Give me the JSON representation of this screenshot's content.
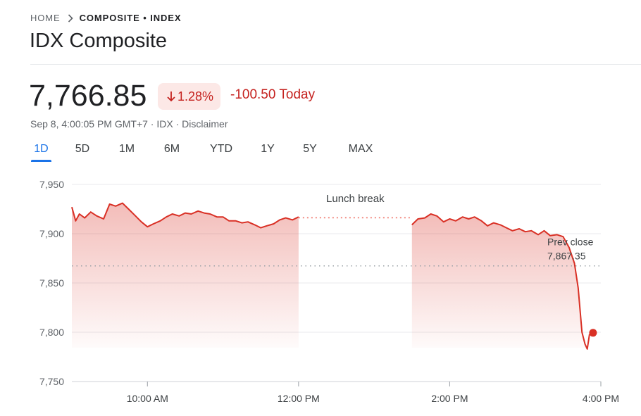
{
  "breadcrumb": {
    "home": "HOME",
    "current": "COMPOSITE • INDEX"
  },
  "title": "IDX Composite",
  "quote": {
    "price": "7,766.85",
    "change_percent": "1.28%",
    "change_today": "-100.50 Today",
    "direction": "down"
  },
  "meta": {
    "timestamp": "Sep 8, 4:00:05 PM GMT+7",
    "exchange": "IDX",
    "separator": " · ",
    "disclaimer": "Disclaimer"
  },
  "tabs": [
    {
      "label": "1D",
      "active": true
    },
    {
      "label": "5D",
      "active": false
    },
    {
      "label": "1M",
      "active": false
    },
    {
      "label": "6M",
      "active": false
    },
    {
      "label": "YTD",
      "active": false
    },
    {
      "label": "1Y",
      "active": false
    },
    {
      "label": "5Y",
      "active": false
    },
    {
      "label": "MAX",
      "active": false
    }
  ],
  "colors": {
    "down": "#d93025",
    "accent": "#1a73e8"
  },
  "chart_data": {
    "type": "line",
    "x_unit": "time of day (hours)",
    "ylim": [
      7750,
      7950
    ],
    "yticks": [
      7950,
      7900,
      7850,
      7800,
      7750
    ],
    "ytick_labels": [
      "7,950",
      "7,900",
      "7,850",
      "7,800",
      "7,750"
    ],
    "xlim": [
      9.0,
      16.0
    ],
    "xticks": [
      10,
      12,
      14,
      16
    ],
    "xtick_labels": [
      "10:00 AM",
      "12:00 PM",
      "2:00 PM",
      "4:00 PM"
    ],
    "grid": true,
    "previous_close": {
      "label": "Prev close",
      "value": 7867.35,
      "value_label": "7,867.35"
    },
    "annotation": {
      "text": "Lunch break",
      "start": 12.0,
      "end": 13.5
    },
    "series": [
      {
        "session": "morning",
        "points": [
          [
            9.0,
            7927
          ],
          [
            9.05,
            7913
          ],
          [
            9.1,
            7920
          ],
          [
            9.17,
            7916
          ],
          [
            9.25,
            7922
          ],
          [
            9.33,
            7918
          ],
          [
            9.42,
            7915
          ],
          [
            9.5,
            7930
          ],
          [
            9.58,
            7928
          ],
          [
            9.67,
            7931
          ],
          [
            9.75,
            7925
          ],
          [
            9.83,
            7919
          ],
          [
            9.92,
            7912
          ],
          [
            10.0,
            7907
          ],
          [
            10.08,
            7910
          ],
          [
            10.17,
            7913
          ],
          [
            10.25,
            7917
          ],
          [
            10.33,
            7920
          ],
          [
            10.42,
            7918
          ],
          [
            10.5,
            7921
          ],
          [
            10.58,
            7920
          ],
          [
            10.67,
            7923
          ],
          [
            10.75,
            7921
          ],
          [
            10.83,
            7920
          ],
          [
            10.92,
            7917
          ],
          [
            11.0,
            7917
          ],
          [
            11.08,
            7913
          ],
          [
            11.17,
            7913
          ],
          [
            11.25,
            7911
          ],
          [
            11.33,
            7912
          ],
          [
            11.42,
            7909
          ],
          [
            11.5,
            7906
          ],
          [
            11.58,
            7908
          ],
          [
            11.67,
            7910
          ],
          [
            11.75,
            7914
          ],
          [
            11.83,
            7916
          ],
          [
            11.92,
            7914
          ],
          [
            12.0,
            7917
          ]
        ]
      },
      {
        "session": "afternoon",
        "points": [
          [
            13.5,
            7909
          ],
          [
            13.58,
            7915
          ],
          [
            13.67,
            7916
          ],
          [
            13.75,
            7920
          ],
          [
            13.83,
            7918
          ],
          [
            13.92,
            7912
          ],
          [
            14.0,
            7915
          ],
          [
            14.08,
            7913
          ],
          [
            14.17,
            7917
          ],
          [
            14.25,
            7915
          ],
          [
            14.33,
            7917
          ],
          [
            14.42,
            7913
          ],
          [
            14.5,
            7908
          ],
          [
            14.58,
            7911
          ],
          [
            14.67,
            7909
          ],
          [
            14.75,
            7906
          ],
          [
            14.83,
            7903
          ],
          [
            14.92,
            7905
          ],
          [
            15.0,
            7902
          ],
          [
            15.08,
            7903
          ],
          [
            15.17,
            7899
          ],
          [
            15.25,
            7903
          ],
          [
            15.33,
            7898
          ],
          [
            15.42,
            7899
          ],
          [
            15.5,
            7897
          ],
          [
            15.58,
            7886
          ],
          [
            15.65,
            7870
          ],
          [
            15.7,
            7845
          ],
          [
            15.75,
            7800
          ],
          [
            15.79,
            7788
          ],
          [
            15.82,
            7783
          ],
          [
            15.85,
            7798
          ]
        ]
      }
    ],
    "last_point": {
      "x": 15.85,
      "y": 7798
    }
  }
}
